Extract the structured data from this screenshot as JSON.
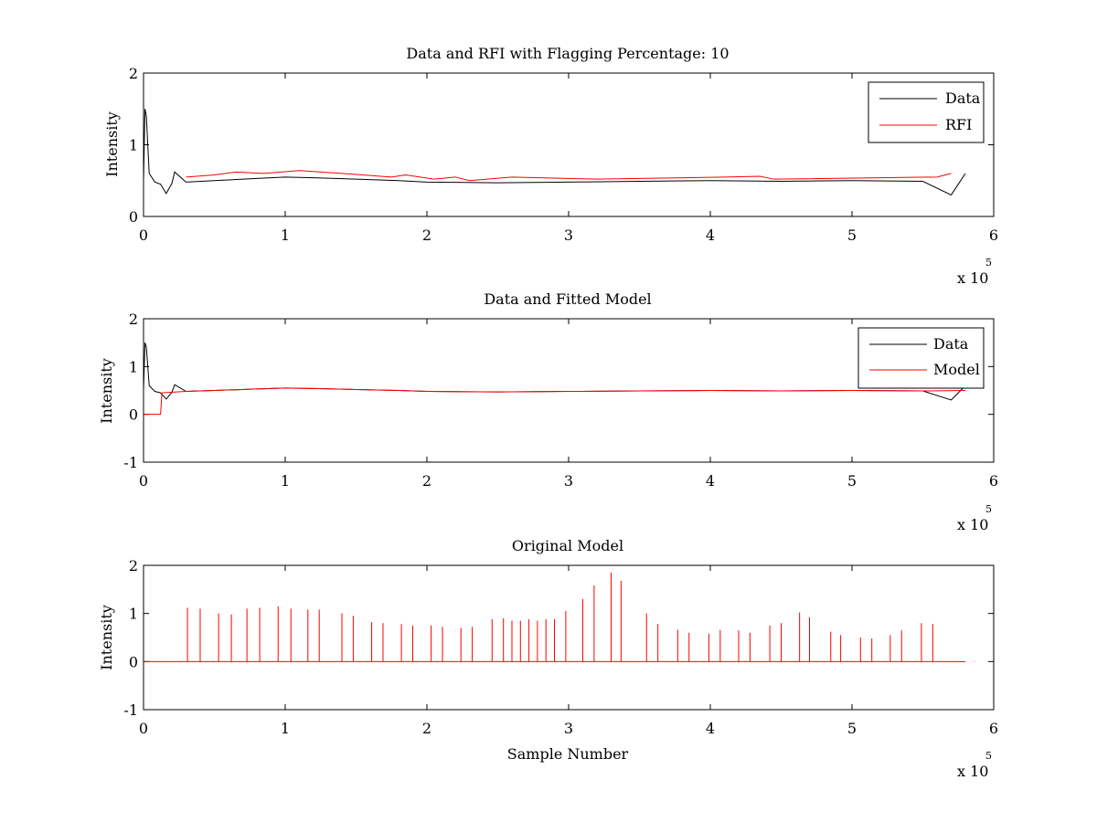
{
  "figure": {
    "background": "#ffffff"
  },
  "colors": {
    "data": "#000000",
    "red": "#ff0000",
    "axis": "#000000"
  },
  "chart_data": [
    {
      "type": "line",
      "title": "Data and RFI with Flagging Percentage: 10",
      "xlabel": "",
      "ylabel": "Intensity",
      "xlim": [
        0,
        6
      ],
      "ylim": [
        0,
        2
      ],
      "x_multiplier_label": "x 10",
      "x_multiplier_exp": "5",
      "x_ticks": [
        "0",
        "1",
        "2",
        "3",
        "4",
        "5",
        "6"
      ],
      "y_ticks": [
        "0",
        "1",
        "2"
      ],
      "legend": {
        "position": "top-right",
        "entries": [
          "Data",
          "RFI"
        ]
      },
      "series": [
        {
          "name": "Data",
          "color": "#000000",
          "x": [
            0,
            0.01,
            0.02,
            0.04,
            0.08,
            0.12,
            0.16,
            0.2,
            0.22,
            0.3,
            0.5,
            0.8,
            1.0,
            1.2,
            1.5,
            1.8,
            2.0,
            2.5,
            3.0,
            3.5,
            4.0,
            4.5,
            5.0,
            5.5,
            5.7,
            5.75,
            5.8
          ],
          "y": [
            0.5,
            1.5,
            1.4,
            0.6,
            0.48,
            0.45,
            0.32,
            0.46,
            0.62,
            0.48,
            0.5,
            0.53,
            0.55,
            0.54,
            0.52,
            0.5,
            0.48,
            0.47,
            0.48,
            0.49,
            0.5,
            0.49,
            0.5,
            0.49,
            0.3,
            0.45,
            0.6
          ]
        },
        {
          "name": "RFI",
          "color": "#ff0000",
          "x": [
            0.3,
            0.5,
            0.65,
            0.85,
            1.1,
            1.4,
            1.75,
            1.85,
            2.05,
            2.2,
            2.3,
            2.6,
            3.2,
            4.1,
            4.35,
            4.45,
            5.6,
            5.7
          ],
          "y": [
            0.55,
            0.58,
            0.62,
            0.6,
            0.64,
            0.6,
            0.55,
            0.58,
            0.52,
            0.55,
            0.5,
            0.55,
            0.52,
            0.55,
            0.56,
            0.52,
            0.55,
            0.6
          ]
        }
      ]
    },
    {
      "type": "line",
      "title": "Data and Fitted Model",
      "xlabel": "",
      "ylabel": "Intensity",
      "xlim": [
        0,
        6
      ],
      "ylim": [
        -1,
        2
      ],
      "x_multiplier_label": "x 10",
      "x_multiplier_exp": "5",
      "x_ticks": [
        "0",
        "1",
        "2",
        "3",
        "4",
        "5",
        "6"
      ],
      "y_ticks": [
        "-1",
        "0",
        "1",
        "2"
      ],
      "legend": {
        "position": "top-right",
        "entries": [
          "Data",
          "Model"
        ]
      },
      "series": [
        {
          "name": "Data",
          "color": "#000000",
          "x": [
            0,
            0.01,
            0.02,
            0.04,
            0.08,
            0.12,
            0.16,
            0.2,
            0.22,
            0.3,
            0.5,
            0.8,
            1.0,
            1.2,
            1.5,
            1.8,
            2.0,
            2.5,
            3.0,
            3.5,
            4.0,
            4.5,
            5.0,
            5.5,
            5.7,
            5.75,
            5.8
          ],
          "y": [
            0.5,
            1.5,
            1.4,
            0.6,
            0.48,
            0.45,
            0.32,
            0.46,
            0.62,
            0.48,
            0.5,
            0.53,
            0.55,
            0.54,
            0.52,
            0.5,
            0.48,
            0.47,
            0.48,
            0.49,
            0.5,
            0.49,
            0.5,
            0.49,
            0.3,
            0.45,
            0.6
          ]
        },
        {
          "name": "Model",
          "color": "#ff0000",
          "x": [
            0,
            0.12,
            0.13,
            0.3,
            0.5,
            0.8,
            1.0,
            1.2,
            1.5,
            1.8,
            2.0,
            2.5,
            3.0,
            3.5,
            4.0,
            4.5,
            5.0,
            5.5,
            5.8
          ],
          "y": [
            0,
            0,
            0.45,
            0.48,
            0.5,
            0.53,
            0.55,
            0.54,
            0.52,
            0.5,
            0.48,
            0.47,
            0.48,
            0.49,
            0.5,
            0.49,
            0.5,
            0.49,
            0.5
          ]
        }
      ]
    },
    {
      "type": "line",
      "title": "Original Model",
      "xlabel": "Sample Number",
      "ylabel": "Intensity",
      "xlim": [
        0,
        6
      ],
      "ylim": [
        -1,
        2
      ],
      "x_multiplier_label": "x 10",
      "x_multiplier_exp": "5",
      "x_ticks": [
        "0",
        "1",
        "2",
        "3",
        "4",
        "5",
        "6"
      ],
      "y_ticks": [
        "-1",
        "0",
        "1",
        "2"
      ],
      "series": [
        {
          "color": "#ff0000",
          "baseline": 0,
          "x_end": 5.8,
          "spikes_x": [
            0.31,
            0.4,
            0.53,
            0.62,
            0.73,
            0.82,
            0.95,
            1.04,
            1.16,
            1.24,
            1.4,
            1.48,
            1.61,
            1.69,
            1.82,
            1.9,
            2.03,
            2.11,
            2.24,
            2.32,
            2.46,
            2.54,
            2.6,
            2.66,
            2.72,
            2.78,
            2.84,
            2.9,
            2.98,
            3.1,
            3.18,
            3.3,
            3.37,
            3.55,
            3.63,
            3.77,
            3.85,
            3.99,
            4.07,
            4.2,
            4.28,
            4.42,
            4.5,
            4.63,
            4.7,
            4.85,
            4.92,
            5.06,
            5.14,
            5.27,
            5.35,
            5.49,
            5.57
          ],
          "spikes_y": [
            1.12,
            1.1,
            1.0,
            0.98,
            1.1,
            1.12,
            1.15,
            1.1,
            1.08,
            1.08,
            1.0,
            0.95,
            0.82,
            0.8,
            0.78,
            0.75,
            0.75,
            0.72,
            0.7,
            0.72,
            0.88,
            0.9,
            0.85,
            0.85,
            0.88,
            0.85,
            0.88,
            0.88,
            1.05,
            1.3,
            1.58,
            1.85,
            1.68,
            1.0,
            0.78,
            0.66,
            0.6,
            0.58,
            0.66,
            0.65,
            0.6,
            0.75,
            0.8,
            1.02,
            0.92,
            0.62,
            0.55,
            0.5,
            0.48,
            0.55,
            0.65,
            0.8,
            0.78
          ]
        }
      ]
    }
  ]
}
